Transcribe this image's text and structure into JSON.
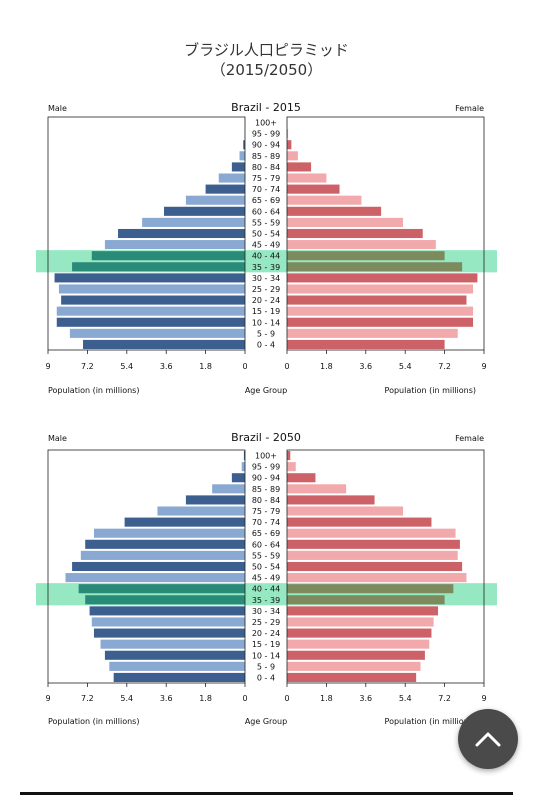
{
  "page": {
    "title_line1": "ブラジル人口ピラミッド",
    "title_line2": "（2015/2050）"
  },
  "colors": {
    "male_dark": "#3d5f8f",
    "male_light": "#8aa9d2",
    "female_dark": "#cc6167",
    "female_light": "#f2a9ab",
    "highlight": "#3fd68f",
    "male_highlight": "#2a8a78",
    "female_highlight": "#7c8a5e"
  },
  "scroll_top_button": {
    "icon": "chevron-up-icon"
  },
  "chart_data": [
    {
      "type": "bar",
      "title": "Brazil - 2015",
      "left_label": "Male",
      "right_label": "Female",
      "xlabel_left": "Population (in millions)",
      "xlabel_center": "Age Group",
      "xlabel_right": "Population (in millions)",
      "xlim": [
        0,
        9
      ],
      "x_ticks_left": [
        "9",
        "7.2",
        "5.4",
        "3.6",
        "1.8",
        "0"
      ],
      "x_ticks_right": [
        "0",
        "1.8",
        "3.6",
        "5.4",
        "7.2",
        "9"
      ],
      "highlight_groups": [
        "40 - 44",
        "35 - 39"
      ],
      "categories": [
        "0 - 4",
        "5 - 9",
        "10 - 14",
        "15 - 19",
        "20 - 24",
        "25 - 29",
        "30 - 34",
        "35 - 39",
        "40 - 44",
        "45 - 49",
        "50 - 54",
        "55 - 59",
        "60 - 64",
        "65 - 69",
        "70 - 74",
        "75 - 79",
        "80 - 84",
        "85 - 89",
        "90 - 94",
        "95 - 99",
        "100+"
      ],
      "series": [
        {
          "name": "Male",
          "values": [
            7.4,
            8.0,
            8.6,
            8.6,
            8.4,
            8.5,
            8.7,
            7.9,
            7.0,
            6.4,
            5.8,
            4.7,
            3.7,
            2.7,
            1.8,
            1.2,
            0.6,
            0.25,
            0.08,
            0.02,
            0.005
          ]
        },
        {
          "name": "Female",
          "values": [
            7.2,
            7.8,
            8.5,
            8.5,
            8.2,
            8.5,
            8.7,
            8.0,
            7.2,
            6.8,
            6.2,
            5.3,
            4.3,
            3.4,
            2.4,
            1.8,
            1.1,
            0.5,
            0.2,
            0.05,
            0.01
          ]
        }
      ]
    },
    {
      "type": "bar",
      "title": "Brazil - 2050",
      "left_label": "Male",
      "right_label": "Female",
      "xlabel_left": "Population (in millions)",
      "xlabel_center": "Age Group",
      "xlabel_right": "Population (in millions)",
      "xlim": [
        0,
        9
      ],
      "x_ticks_left": [
        "9",
        "7.2",
        "5.4",
        "3.6",
        "1.8",
        "0"
      ],
      "x_ticks_right": [
        "0",
        "1.8",
        "3.6",
        "5.4",
        "7.2",
        "9"
      ],
      "highlight_groups": [
        "40 - 44",
        "35 - 39"
      ],
      "categories": [
        "0 - 4",
        "5 - 9",
        "10 - 14",
        "15 - 19",
        "20 - 24",
        "25 - 29",
        "30 - 34",
        "35 - 39",
        "40 - 44",
        "45 - 49",
        "50 - 54",
        "55 - 59",
        "60 - 64",
        "65 - 69",
        "70 - 74",
        "75 - 79",
        "80 - 84",
        "85 - 89",
        "90 - 94",
        "95 - 99",
        "100+"
      ],
      "series": [
        {
          "name": "Male",
          "values": [
            6.0,
            6.2,
            6.4,
            6.6,
            6.9,
            7.0,
            7.1,
            7.3,
            7.6,
            8.2,
            7.9,
            7.5,
            7.3,
            6.9,
            5.5,
            4.0,
            2.7,
            1.5,
            0.6,
            0.15,
            0.05
          ]
        },
        {
          "name": "Female",
          "values": [
            5.9,
            6.1,
            6.3,
            6.5,
            6.6,
            6.7,
            6.9,
            7.2,
            7.6,
            8.2,
            8.0,
            7.8,
            7.9,
            7.7,
            6.6,
            5.3,
            4.0,
            2.7,
            1.3,
            0.4,
            0.15
          ]
        }
      ]
    }
  ]
}
